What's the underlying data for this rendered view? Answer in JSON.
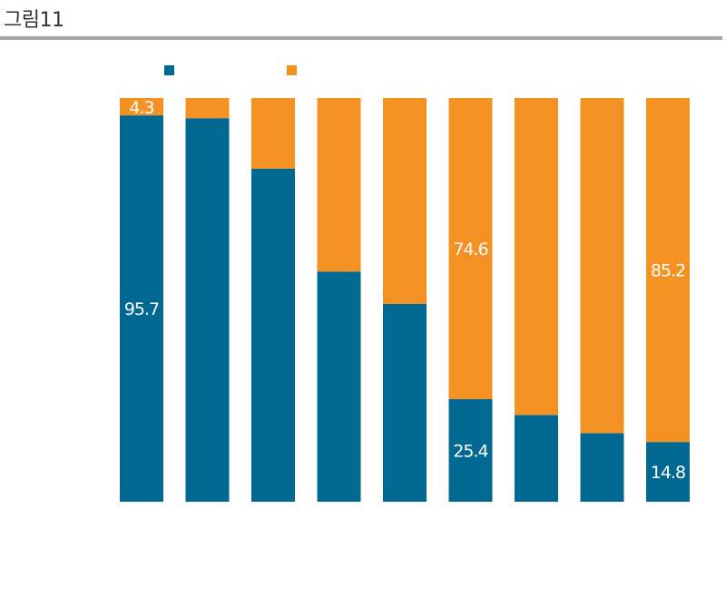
{
  "figure_title": "그림11",
  "chart_data": {
    "type": "bar",
    "stacked": true,
    "normalized_percent": true,
    "ylim": [
      0,
      100
    ],
    "legend_position": "top-left",
    "categories": [
      "",
      "",
      "",
      "",
      "",
      "",
      "",
      "",
      ""
    ],
    "series": [
      {
        "color": "#006891",
        "values": [
          95.7,
          95.0,
          82.5,
          57.0,
          49.0,
          25.4,
          21.5,
          17.0,
          14.8
        ],
        "labels": [
          "95.7",
          "",
          "",
          "",
          "",
          "25.4",
          "",
          "",
          "14.8"
        ]
      },
      {
        "color": "#f39123",
        "values": [
          4.3,
          5.0,
          17.5,
          43.0,
          51.0,
          74.6,
          78.5,
          83.0,
          85.2
        ],
        "labels": [
          "4.3",
          "",
          "",
          "",
          "",
          "74.6",
          "",
          "",
          "85.2"
        ]
      }
    ]
  }
}
